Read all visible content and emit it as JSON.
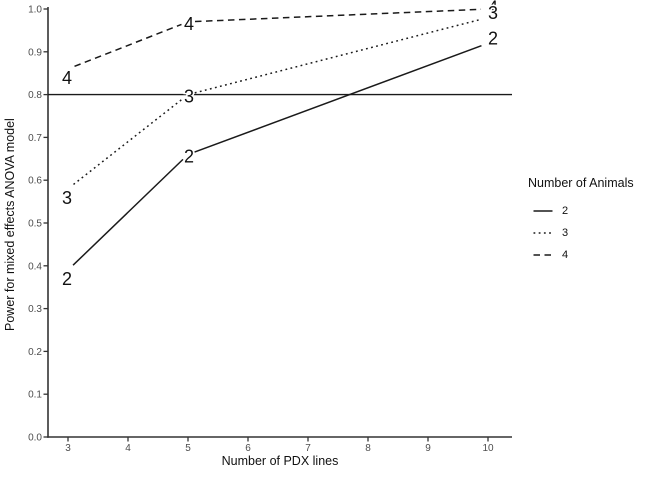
{
  "chart_data": {
    "type": "line",
    "title": "",
    "xlabel": "Number of PDX lines",
    "ylabel": "Power for mixed effects ANOVA model",
    "x_ticks": [
      3,
      4,
      5,
      6,
      7,
      8,
      9,
      10
    ],
    "y_ticks": [
      "0.0",
      "0.1",
      "0.2",
      "0.3",
      "0.4",
      "0.5",
      "0.6",
      "0.7",
      "0.8",
      "0.9",
      "1.0"
    ],
    "xlim": [
      3,
      10
    ],
    "ylim": [
      0,
      1
    ],
    "grid": "off",
    "reference_line": {
      "y": 0.8,
      "style": "solid"
    },
    "legend": {
      "position": "right",
      "title": "Number of Animals",
      "entries": [
        {
          "label": "2",
          "linetype": "solid"
        },
        {
          "label": "3",
          "linetype": "dotted"
        },
        {
          "label": "4",
          "linetype": "dashed"
        }
      ]
    },
    "series": [
      {
        "name": "2",
        "linetype": "solid",
        "x": [
          3,
          5,
          10
        ],
        "y": [
          0.39,
          0.66,
          0.92
        ],
        "point_labels": [
          "2",
          "2",
          "2"
        ]
      },
      {
        "name": "3",
        "linetype": "dotted",
        "x": [
          3,
          5,
          10
        ],
        "y": [
          0.58,
          0.8,
          0.98
        ],
        "point_labels": [
          "3",
          "3",
          "3"
        ]
      },
      {
        "name": "4",
        "linetype": "dashed",
        "x": [
          3,
          5,
          10
        ],
        "y": [
          0.86,
          0.97,
          1.0
        ],
        "point_labels": [
          "4",
          "4",
          "4"
        ]
      }
    ],
    "colors": {
      "line": "#1a1a1a",
      "axis": "#333333",
      "tick_label": "#4d4d4d",
      "background": "#ffffff"
    }
  }
}
